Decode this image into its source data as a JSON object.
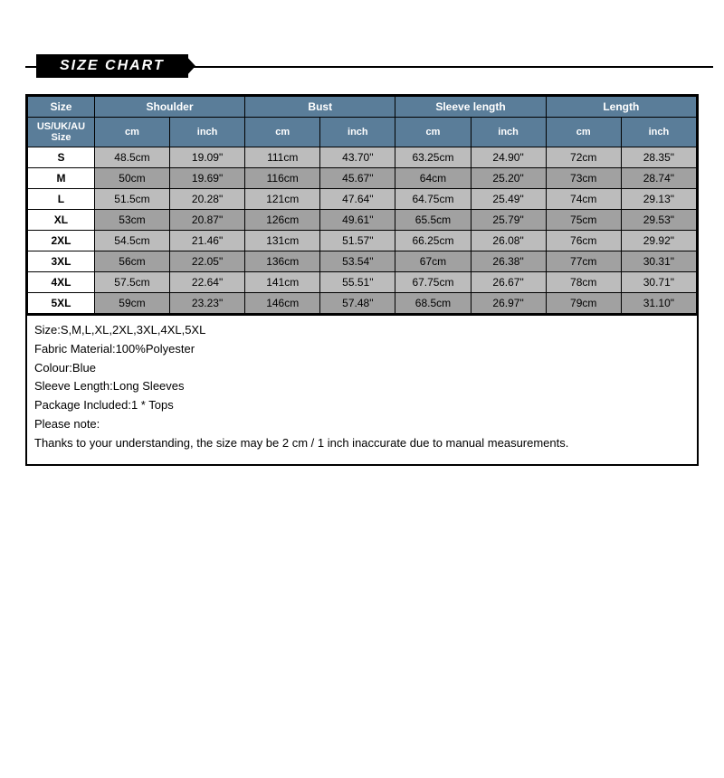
{
  "ribbon": {
    "label": "SIZE CHART"
  },
  "headers": {
    "size": "Size",
    "measures": [
      "Shoulder",
      "Bust",
      "Sleeve length",
      "Length"
    ],
    "sub_size": "US/UK/AU Size",
    "unit_cm": "cm",
    "unit_inch": "inch"
  },
  "rows": [
    {
      "size": "S",
      "vals": [
        "48.5cm",
        "19.09\"",
        "111cm",
        "43.70\"",
        "63.25cm",
        "24.90\"",
        "72cm",
        "28.35\""
      ]
    },
    {
      "size": "M",
      "vals": [
        "50cm",
        "19.69\"",
        "116cm",
        "45.67\"",
        "64cm",
        "25.20\"",
        "73cm",
        "28.74\""
      ]
    },
    {
      "size": "L",
      "vals": [
        "51.5cm",
        "20.28\"",
        "121cm",
        "47.64\"",
        "64.75cm",
        "25.49\"",
        "74cm",
        "29.13\""
      ]
    },
    {
      "size": "XL",
      "vals": [
        "53cm",
        "20.87\"",
        "126cm",
        "49.61\"",
        "65.5cm",
        "25.79\"",
        "75cm",
        "29.53\""
      ]
    },
    {
      "size": "2XL",
      "vals": [
        "54.5cm",
        "21.46\"",
        "131cm",
        "51.57\"",
        "66.25cm",
        "26.08\"",
        "76cm",
        "29.92\""
      ]
    },
    {
      "size": "3XL",
      "vals": [
        "56cm",
        "22.05\"",
        "136cm",
        "53.54\"",
        "67cm",
        "26.38\"",
        "77cm",
        "30.31\""
      ]
    },
    {
      "size": "4XL",
      "vals": [
        "57.5cm",
        "22.64\"",
        "141cm",
        "55.51\"",
        "67.75cm",
        "26.67\"",
        "78cm",
        "30.71\""
      ]
    },
    {
      "size": "5XL",
      "vals": [
        "59cm",
        "23.23\"",
        "146cm",
        "57.48\"",
        "68.5cm",
        "26.97\"",
        "79cm",
        "31.10\""
      ]
    }
  ],
  "notes": [
    "Size:S,M,L,XL,2XL,3XL,4XL,5XL",
    "Fabric Material:100%Polyester",
    "Colour:Blue",
    "Sleeve Length:Long Sleeves",
    "Package Included:1 * Tops",
    "Please note:",
    "Thanks to your understanding, the size may be 2 cm / 1 inch inaccurate due to manual measurements."
  ],
  "style": {
    "header_bg": "#5a7d99",
    "row_light": "#bcbcbc",
    "row_dark": "#a1a1a1",
    "border": "#000000",
    "col_widths_pct": [
      10,
      11.25,
      11.25,
      11.25,
      11.25,
      11.25,
      11.25,
      11.25,
      11.25
    ]
  }
}
